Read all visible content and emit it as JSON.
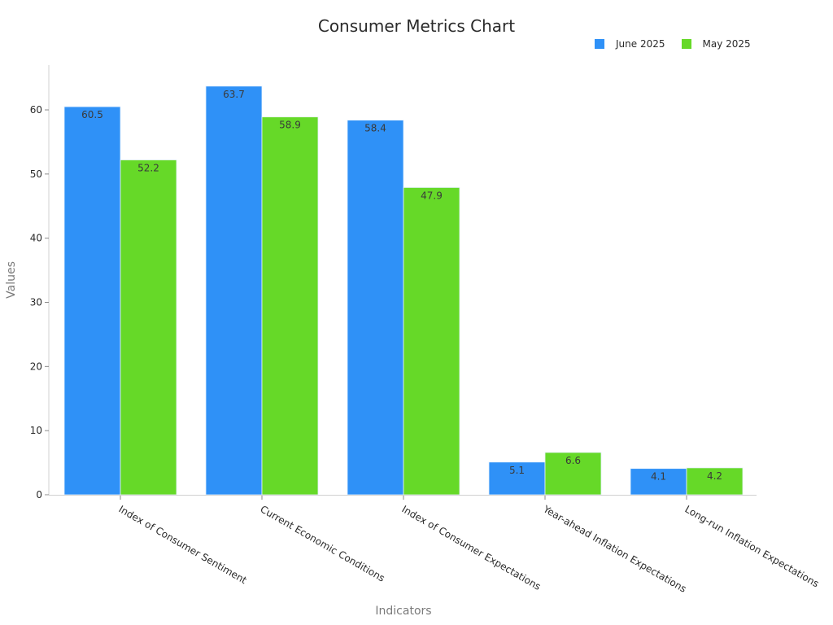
{
  "chart_data": {
    "type": "bar",
    "title": "Consumer Metrics Chart",
    "xlabel": "Indicators",
    "ylabel": "Values",
    "categories": [
      "Index of Consumer Sentiment",
      "Current Economic Conditions",
      "Index of Consumer Expectations",
      "Year-ahead Inflation Expectations",
      "Long-run Inflation Expectations"
    ],
    "series": [
      {
        "name": "June 2025",
        "color": "#2f91f7",
        "values": [
          60.5,
          63.7,
          58.4,
          5.1,
          4.1
        ]
      },
      {
        "name": "May 2025",
        "color": "#66d928",
        "values": [
          52.2,
          58.9,
          47.9,
          6.6,
          4.2
        ]
      }
    ],
    "yticks": [
      0,
      10,
      20,
      30,
      40,
      50,
      60
    ],
    "ylim": [
      0,
      67
    ],
    "grid": false,
    "legend_position": "top-right",
    "data_labels": true
  }
}
